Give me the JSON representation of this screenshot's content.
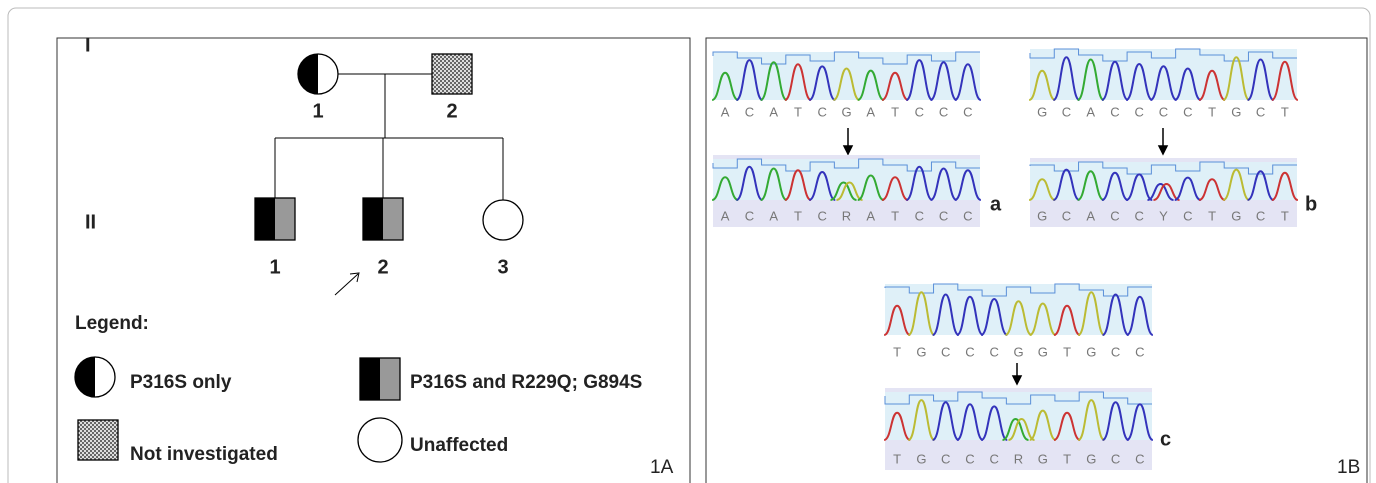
{
  "pedigree": {
    "generation_labels": [
      "I",
      "II"
    ],
    "gen_I_numbers": [
      "1",
      "2"
    ],
    "gen_II_numbers": [
      "1",
      "2",
      "3"
    ]
  },
  "legend": {
    "title": "Legend:",
    "items": [
      "P316S only",
      "P316S and R229Q; G894S",
      "Not investigated",
      "Unaffected"
    ]
  },
  "panel_labels": [
    "1A",
    "1B"
  ],
  "chromatograms": [
    {
      "label": "a",
      "reference": [
        "A",
        "C",
        "A",
        "T",
        "C",
        "G",
        "A",
        "T",
        "C",
        "C",
        "C"
      ],
      "variant": [
        "A",
        "C",
        "A",
        "T",
        "C",
        "R",
        "A",
        "T",
        "C",
        "C",
        "C"
      ]
    },
    {
      "label": "b",
      "reference": [
        "G",
        "C",
        "A",
        "C",
        "C",
        "C",
        "C",
        "T",
        "G",
        "C",
        "T"
      ],
      "variant": [
        "G",
        "C",
        "A",
        "C",
        "C",
        "Y",
        "C",
        "T",
        "G",
        "C",
        "T"
      ]
    },
    {
      "label": "c",
      "reference": [
        "T",
        "G",
        "C",
        "C",
        "C",
        "G",
        "G",
        "T",
        "G",
        "C",
        "C"
      ],
      "variant": [
        "T",
        "G",
        "C",
        "C",
        "C",
        "R",
        "G",
        "T",
        "G",
        "C",
        "C"
      ]
    }
  ]
}
